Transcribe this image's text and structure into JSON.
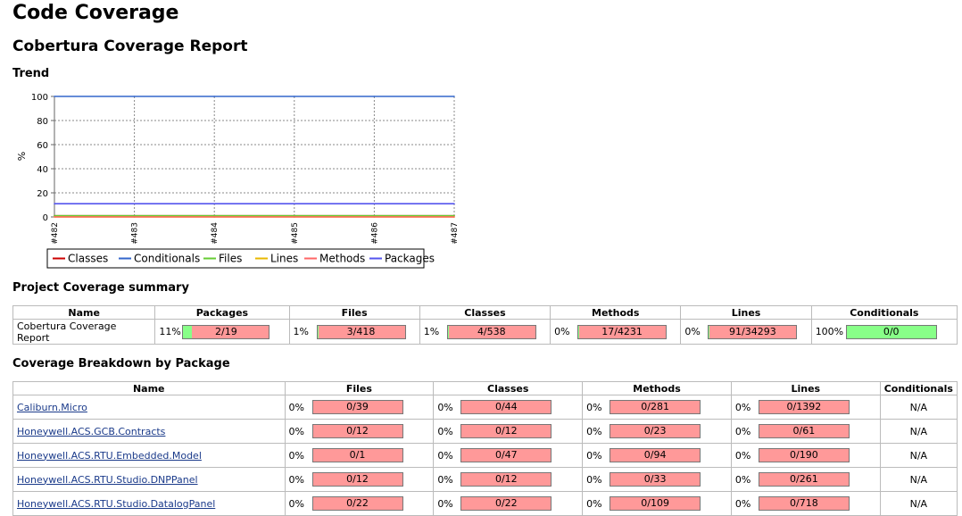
{
  "page": {
    "title": "Code Coverage",
    "subtitle": "Cobertura Coverage Report",
    "trend_heading": "Trend",
    "summary_heading": "Project Coverage summary",
    "breakdown_heading": "Coverage Breakdown by Package"
  },
  "chart_data": {
    "type": "line",
    "ylabel": "%",
    "ylim": [
      0,
      100
    ],
    "yticks": [
      "0",
      "20",
      "40",
      "60",
      "80",
      "100"
    ],
    "x": [
      "#482",
      "#483",
      "#484",
      "#485",
      "#486",
      "#487"
    ],
    "grid": true,
    "legend_position": "bottom",
    "series": [
      {
        "name": "Classes",
        "color": "#cc0000",
        "values": [
          1,
          1,
          1,
          1,
          1,
          1
        ]
      },
      {
        "name": "Conditionals",
        "color": "#3366cc",
        "values": [
          100,
          100,
          100,
          100,
          100,
          100
        ]
      },
      {
        "name": "Files",
        "color": "#66cc33",
        "values": [
          1,
          1,
          1,
          1,
          1,
          1
        ]
      },
      {
        "name": "Lines",
        "color": "#e8b800",
        "values": [
          0,
          0,
          0,
          0,
          0,
          0
        ]
      },
      {
        "name": "Methods",
        "color": "#ff6666",
        "values": [
          0,
          0,
          0,
          0,
          0,
          0
        ]
      },
      {
        "name": "Packages",
        "color": "#5555ee",
        "values": [
          11,
          11,
          11,
          11,
          11,
          11
        ]
      }
    ]
  },
  "summary": {
    "headers": [
      "Name",
      "Packages",
      "Files",
      "Classes",
      "Methods",
      "Lines",
      "Conditionals"
    ],
    "row": {
      "name": "Cobertura Coverage Report",
      "cells": [
        {
          "pct": "11%",
          "ratio": "2/19",
          "fraction": 0.105
        },
        {
          "pct": "1%",
          "ratio": "3/418",
          "fraction": 0.007
        },
        {
          "pct": "1%",
          "ratio": "4/538",
          "fraction": 0.007
        },
        {
          "pct": "0%",
          "ratio": "17/4231",
          "fraction": 0.004
        },
        {
          "pct": "0%",
          "ratio": "91/34293",
          "fraction": 0.003
        },
        {
          "pct": "100%",
          "ratio": "0/0",
          "fraction": 1.0
        }
      ]
    }
  },
  "breakdown": {
    "headers": [
      "Name",
      "Files",
      "Classes",
      "Methods",
      "Lines",
      "Conditionals"
    ],
    "rows": [
      {
        "name": "Caliburn.Micro",
        "files": {
          "pct": "0%",
          "ratio": "0/39"
        },
        "classes": {
          "pct": "0%",
          "ratio": "0/44"
        },
        "methods": {
          "pct": "0%",
          "ratio": "0/281"
        },
        "lines": {
          "pct": "0%",
          "ratio": "0/1392"
        },
        "conditionals": "N/A"
      },
      {
        "name": "Honeywell.ACS.GCB.Contracts",
        "files": {
          "pct": "0%",
          "ratio": "0/12"
        },
        "classes": {
          "pct": "0%",
          "ratio": "0/12"
        },
        "methods": {
          "pct": "0%",
          "ratio": "0/23"
        },
        "lines": {
          "pct": "0%",
          "ratio": "0/61"
        },
        "conditionals": "N/A"
      },
      {
        "name": "Honeywell.ACS.RTU.Embedded.Model",
        "files": {
          "pct": "0%",
          "ratio": "0/1"
        },
        "classes": {
          "pct": "0%",
          "ratio": "0/47"
        },
        "methods": {
          "pct": "0%",
          "ratio": "0/94"
        },
        "lines": {
          "pct": "0%",
          "ratio": "0/190"
        },
        "conditionals": "N/A"
      },
      {
        "name": "Honeywell.ACS.RTU.Studio.DNPPanel",
        "files": {
          "pct": "0%",
          "ratio": "0/12"
        },
        "classes": {
          "pct": "0%",
          "ratio": "0/12"
        },
        "methods": {
          "pct": "0%",
          "ratio": "0/33"
        },
        "lines": {
          "pct": "0%",
          "ratio": "0/261"
        },
        "conditionals": "N/A"
      },
      {
        "name": "Honeywell.ACS.RTU.Studio.DatalogPanel",
        "files": {
          "pct": "0%",
          "ratio": "0/22"
        },
        "classes": {
          "pct": "0%",
          "ratio": "0/22"
        },
        "methods": {
          "pct": "0%",
          "ratio": "0/109"
        },
        "lines": {
          "pct": "0%",
          "ratio": "0/718"
        },
        "conditionals": "N/A"
      }
    ]
  }
}
